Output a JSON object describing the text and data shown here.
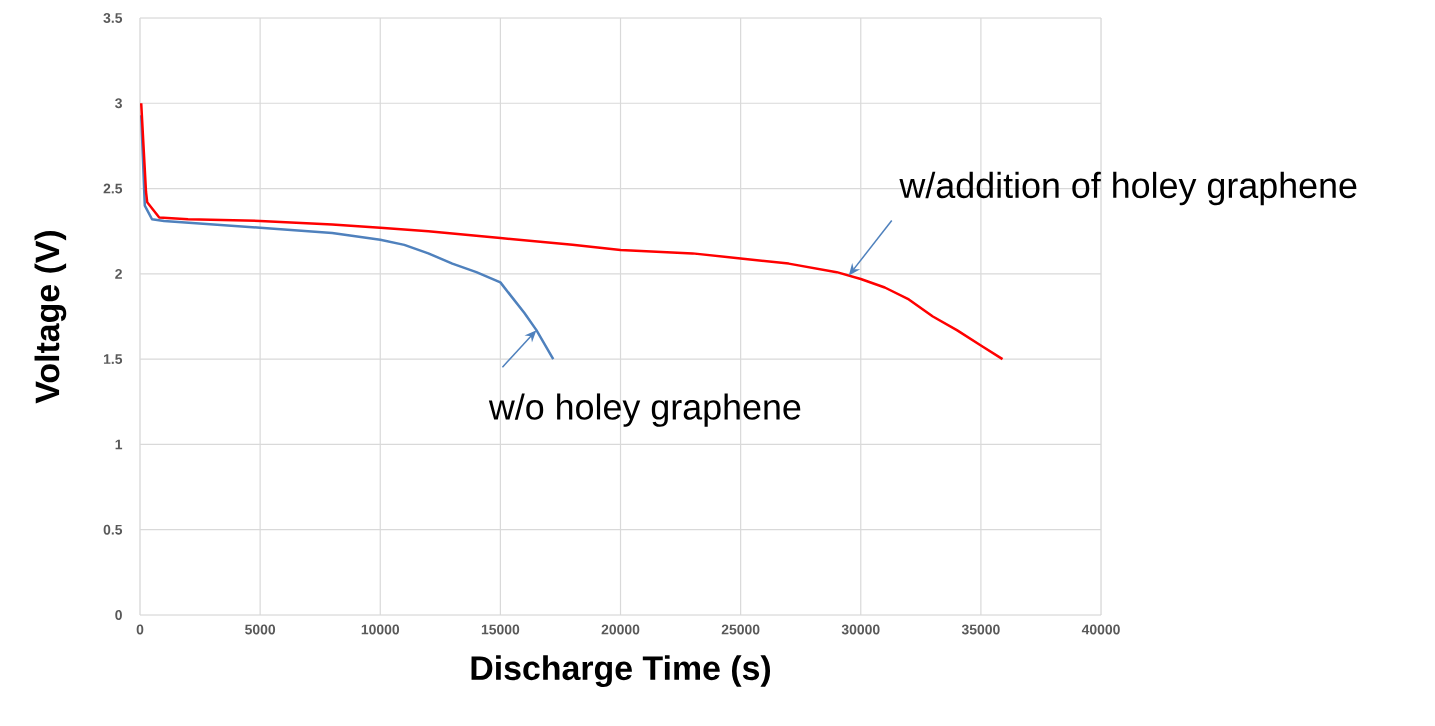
{
  "chart_data": {
    "type": "line",
    "xlabel": "Discharge Time (s)",
    "ylabel": "Voltage (V)",
    "xlim": [
      0,
      40000
    ],
    "xticks": [
      0,
      5000,
      10000,
      15000,
      20000,
      25000,
      30000,
      35000,
      40000
    ],
    "ylim": [
      0,
      3.5
    ],
    "yticks": [
      0,
      0.5,
      1,
      1.5,
      2,
      2.5,
      3,
      3.5
    ],
    "grid": true,
    "marker": "none",
    "line_style": "solid",
    "series": [
      {
        "color": "#4f81bd",
        "x": [
          50,
          200,
          500,
          1000,
          3000,
          5000,
          8000,
          10000,
          11000,
          12000,
          13000,
          14000,
          15000,
          16000,
          16500,
          17200
        ],
        "values": [
          2.93,
          2.4,
          2.32,
          2.31,
          2.29,
          2.27,
          2.24,
          2.2,
          2.17,
          2.12,
          2.06,
          2.01,
          1.95,
          1.77,
          1.67,
          1.5
        ]
      },
      {
        "color": "#ff0000",
        "x": [
          50,
          250,
          300,
          800,
          2000,
          5000,
          8000,
          10000,
          12000,
          15000,
          18000,
          20000,
          23000,
          25000,
          27000,
          29000,
          30000,
          31000,
          32000,
          33000,
          34000,
          35000,
          35900
        ],
        "values": [
          3.0,
          2.48,
          2.42,
          2.33,
          2.32,
          2.31,
          2.29,
          2.27,
          2.25,
          2.21,
          2.17,
          2.14,
          2.12,
          2.09,
          2.06,
          2.01,
          1.97,
          1.92,
          1.85,
          1.75,
          1.67,
          1.58,
          1.5
        ]
      }
    ],
    "annotations": [
      {
        "text": "w/o holey graphene",
        "x": 16500,
        "y": 1.67
      },
      {
        "text": "w/addition of holey graphene",
        "x": 29500,
        "y": 1.99
      }
    ]
  }
}
